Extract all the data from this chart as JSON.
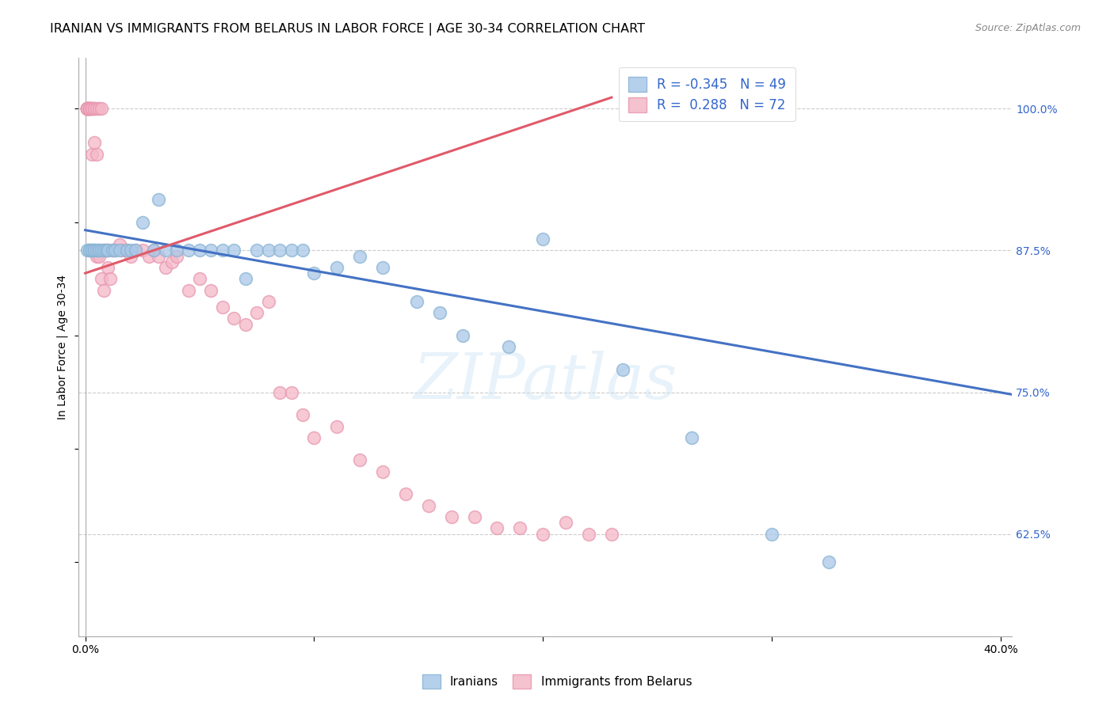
{
  "title": "IRANIAN VS IMMIGRANTS FROM BELARUS IN LABOR FORCE | AGE 30-34 CORRELATION CHART",
  "source": "Source: ZipAtlas.com",
  "ylabel": "In Labor Force | Age 30-34",
  "xlim_min": -0.003,
  "xlim_max": 0.405,
  "ylim_min": 0.535,
  "ylim_max": 1.045,
  "yticks": [
    0.625,
    0.75,
    0.875,
    1.0
  ],
  "ytick_labels": [
    "62.5%",
    "75.0%",
    "87.5%",
    "100.0%"
  ],
  "xticks": [
    0.0,
    0.1,
    0.2,
    0.3,
    0.4
  ],
  "xtick_labels": [
    "0.0%",
    "",
    "",
    "",
    "40.0%"
  ],
  "watermark": "ZIPatlas",
  "legend_r_blue": "-0.345",
  "legend_n_blue": "49",
  "legend_r_pink": "0.288",
  "legend_n_pink": "72",
  "blue_scatter_x": [
    0.001,
    0.002,
    0.002,
    0.003,
    0.003,
    0.004,
    0.004,
    0.005,
    0.006,
    0.006,
    0.007,
    0.008,
    0.009,
    0.01,
    0.012,
    0.013,
    0.015,
    0.018,
    0.02,
    0.022,
    0.025,
    0.03,
    0.032,
    0.035,
    0.04,
    0.045,
    0.05,
    0.055,
    0.06,
    0.065,
    0.07,
    0.075,
    0.08,
    0.085,
    0.09,
    0.095,
    0.1,
    0.11,
    0.12,
    0.13,
    0.145,
    0.155,
    0.165,
    0.185,
    0.2,
    0.235,
    0.265,
    0.3,
    0.325
  ],
  "blue_scatter_y": [
    0.875,
    0.875,
    0.875,
    0.875,
    0.875,
    0.875,
    0.875,
    0.875,
    0.875,
    0.875,
    0.875,
    0.875,
    0.875,
    0.875,
    0.875,
    0.875,
    0.875,
    0.875,
    0.875,
    0.875,
    0.9,
    0.875,
    0.92,
    0.875,
    0.875,
    0.875,
    0.875,
    0.875,
    0.875,
    0.875,
    0.85,
    0.875,
    0.875,
    0.875,
    0.875,
    0.875,
    0.855,
    0.86,
    0.87,
    0.86,
    0.83,
    0.82,
    0.8,
    0.79,
    0.885,
    0.77,
    0.71,
    0.625,
    0.6
  ],
  "pink_scatter_x": [
    0.001,
    0.001,
    0.001,
    0.001,
    0.001,
    0.001,
    0.001,
    0.001,
    0.002,
    0.002,
    0.002,
    0.002,
    0.002,
    0.003,
    0.003,
    0.003,
    0.003,
    0.004,
    0.004,
    0.004,
    0.005,
    0.005,
    0.005,
    0.006,
    0.006,
    0.007,
    0.007,
    0.008,
    0.008,
    0.009,
    0.01,
    0.01,
    0.011,
    0.012,
    0.013,
    0.015,
    0.016,
    0.018,
    0.02,
    0.022,
    0.025,
    0.028,
    0.03,
    0.032,
    0.035,
    0.038,
    0.04,
    0.045,
    0.05,
    0.055,
    0.06,
    0.065,
    0.07,
    0.075,
    0.08,
    0.085,
    0.09,
    0.095,
    0.1,
    0.11,
    0.12,
    0.13,
    0.14,
    0.15,
    0.16,
    0.17,
    0.18,
    0.19,
    0.2,
    0.21,
    0.22,
    0.23
  ],
  "pink_scatter_y": [
    1.0,
    1.0,
    1.0,
    1.0,
    1.0,
    1.0,
    1.0,
    1.0,
    1.0,
    1.0,
    1.0,
    1.0,
    1.0,
    1.0,
    1.0,
    1.0,
    0.96,
    1.0,
    1.0,
    0.97,
    1.0,
    0.96,
    0.87,
    1.0,
    0.87,
    1.0,
    0.85,
    0.875,
    0.84,
    0.875,
    0.86,
    0.875,
    0.85,
    0.875,
    0.875,
    0.88,
    0.875,
    0.875,
    0.87,
    0.875,
    0.875,
    0.87,
    0.875,
    0.87,
    0.86,
    0.865,
    0.87,
    0.84,
    0.85,
    0.84,
    0.825,
    0.815,
    0.81,
    0.82,
    0.83,
    0.75,
    0.75,
    0.73,
    0.71,
    0.72,
    0.69,
    0.68,
    0.66,
    0.65,
    0.64,
    0.64,
    0.63,
    0.63,
    0.625,
    0.635,
    0.625,
    0.625
  ],
  "blue_color": "#a8c8e8",
  "blue_edge_color": "#8ab4d4",
  "pink_color": "#f4b8c8",
  "pink_edge_color": "#e898b0",
  "blue_line_color": "#4472c4",
  "pink_line_color": "#e05a6a",
  "blue_trend_x0": 0.0,
  "blue_trend_x1": 0.405,
  "blue_trend_y0": 0.893,
  "blue_trend_y1": 0.748,
  "pink_trend_x0": 0.0,
  "pink_trend_x1": 0.23,
  "pink_trend_y0": 0.855,
  "pink_trend_y1": 1.01,
  "title_fontsize": 11.5,
  "axis_label_fontsize": 10,
  "tick_fontsize": 10,
  "legend_fontsize": 12
}
